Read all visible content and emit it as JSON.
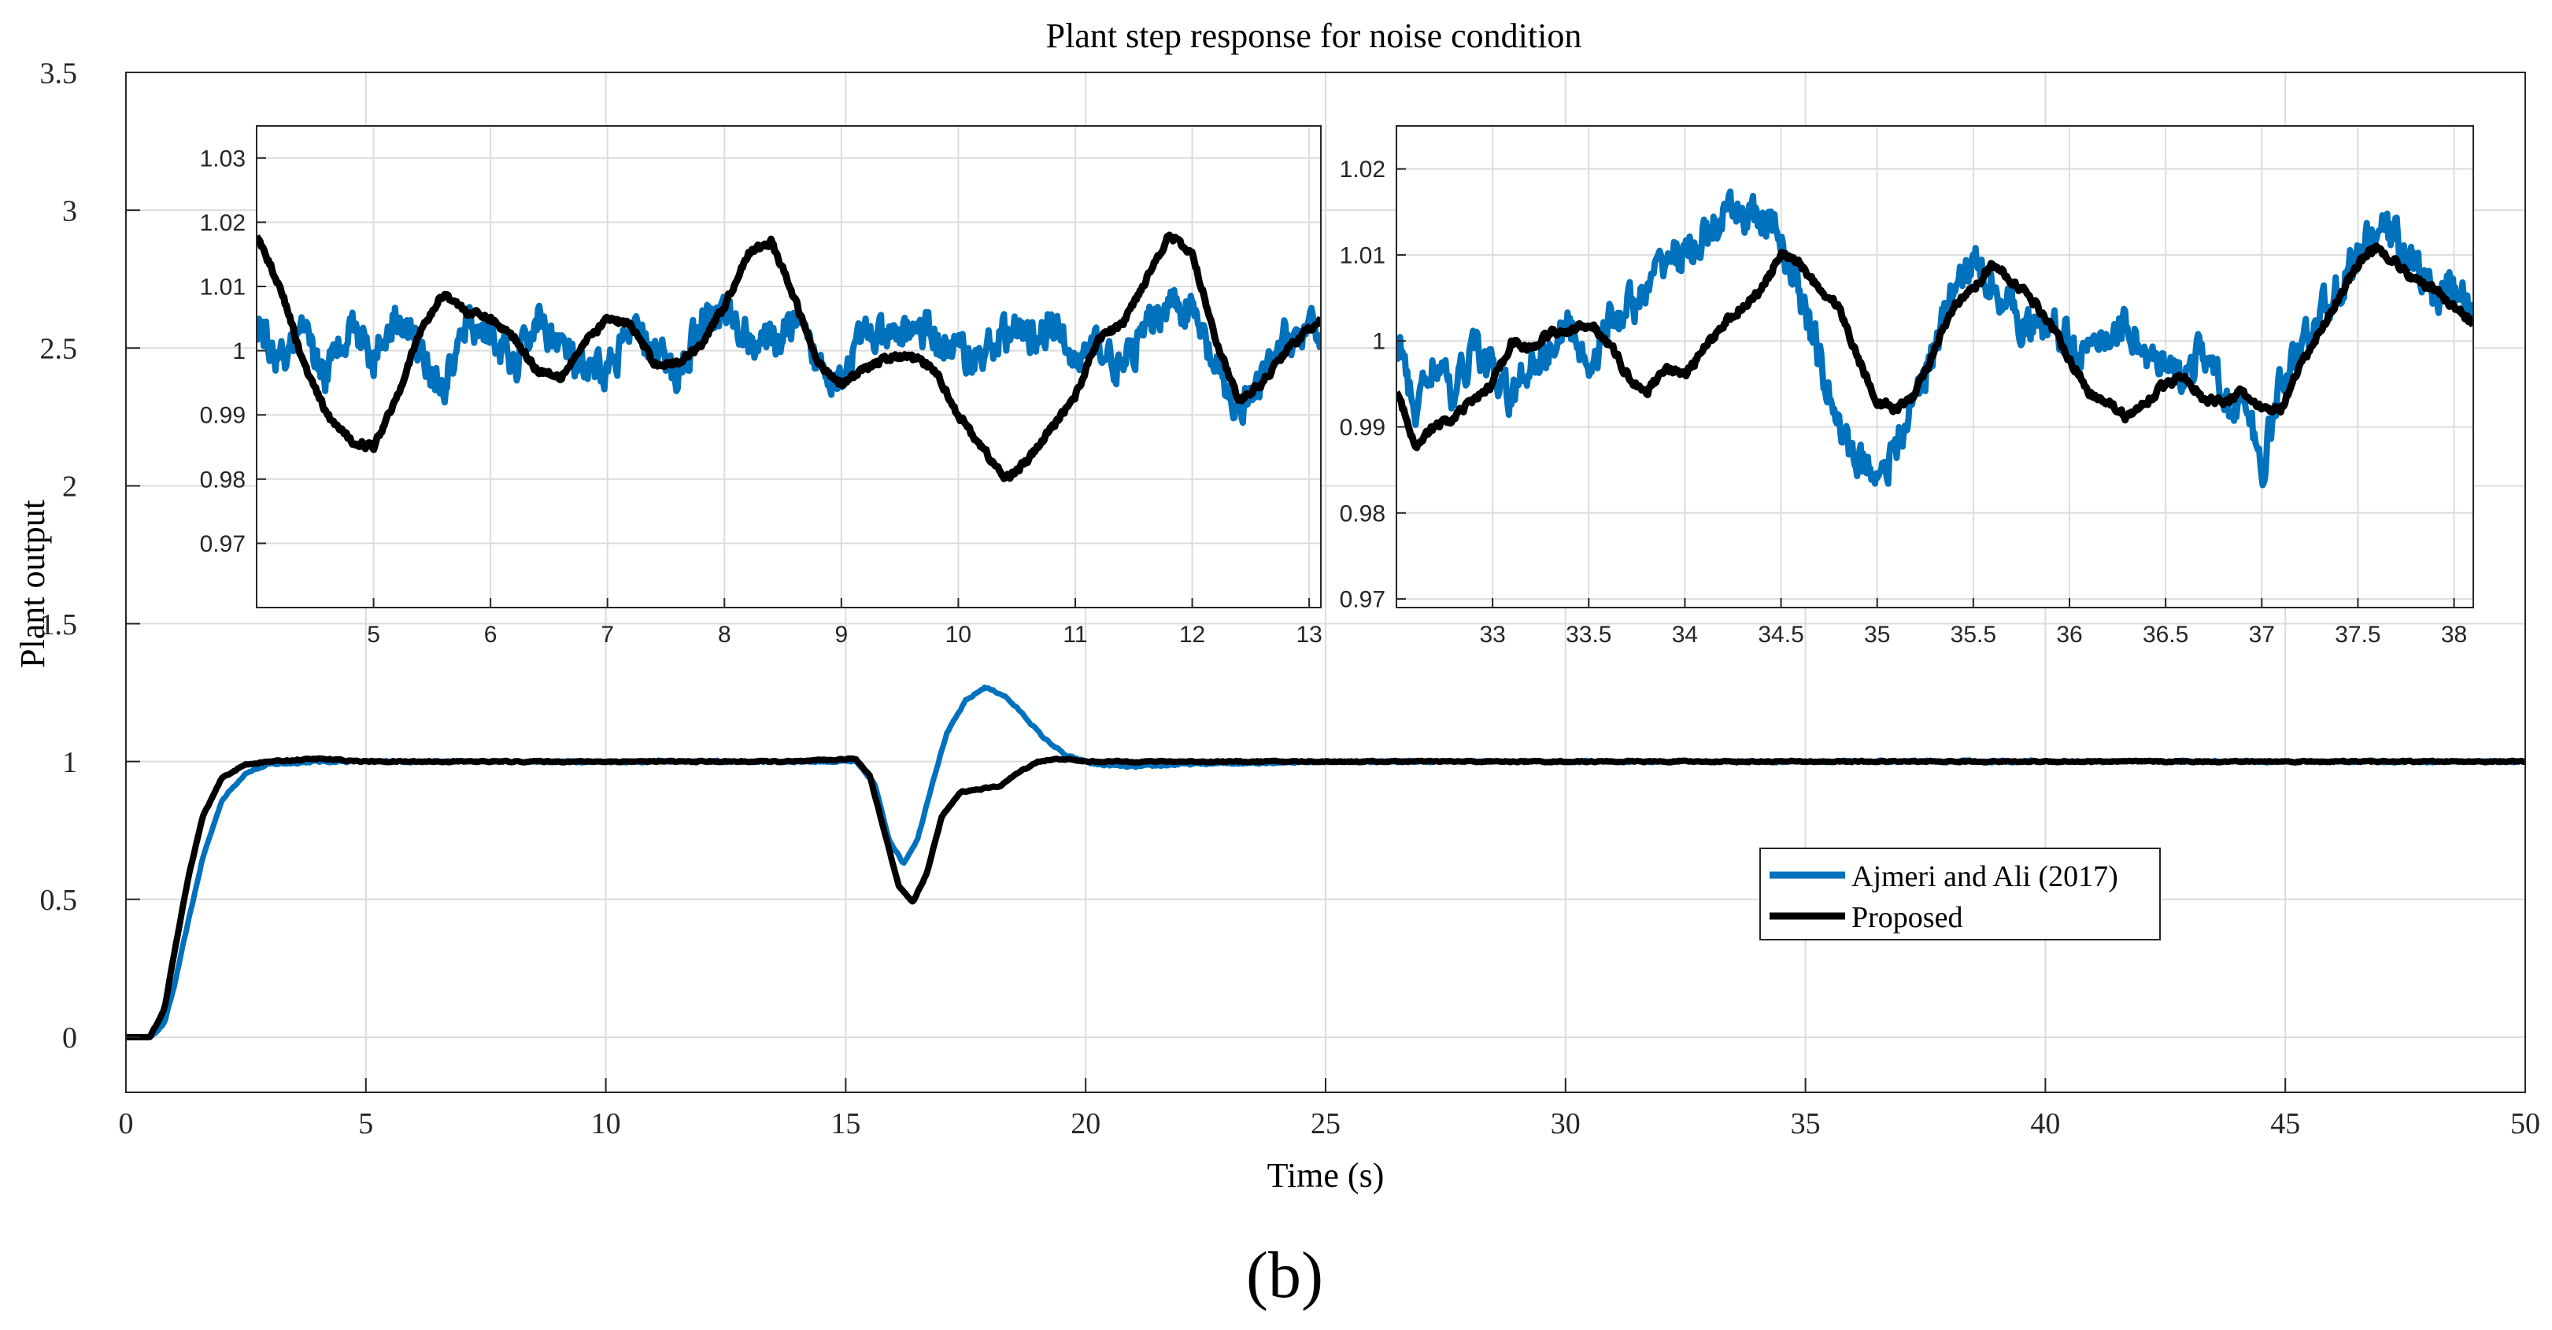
{
  "chart_data": [
    {
      "id": "main",
      "type": "line",
      "title": "Plant step response for noise condition",
      "xlabel": "Time (s)",
      "ylabel": "Plant output",
      "xlim": [
        0,
        50
      ],
      "ylim": [
        -0.2,
        3.5
      ],
      "xticks": [
        0,
        5,
        10,
        15,
        20,
        25,
        30,
        35,
        40,
        45,
        50
      ],
      "yticks": [
        0,
        0.5,
        1,
        1.5,
        2,
        2.5,
        3,
        3.5
      ],
      "xtick_labels": [
        "0",
        "5",
        "10",
        "15",
        "20",
        "25",
        "30",
        "35",
        "40",
        "45",
        "50"
      ],
      "ytick_labels": [
        "0",
        "0.5",
        "1",
        "1.5",
        "2",
        "2.5",
        "3",
        "3.5"
      ],
      "grid": true,
      "legend": {
        "position": "right-center",
        "entries": [
          "Ajmeri and Ali (2017)",
          "Proposed"
        ]
      },
      "series": [
        {
          "name": "Ajmeri and Ali (2017)",
          "color": "#0072bd",
          "x": [
            0,
            0.5,
            0.8,
            1.0,
            1.3,
            1.6,
            2.0,
            2.5,
            3.0,
            4.0,
            5.0,
            6.0,
            8.0,
            10.0,
            12.0,
            14.0,
            15.2,
            15.6,
            15.9,
            16.2,
            16.5,
            16.8,
            17.1,
            17.5,
            17.9,
            18.3,
            18.7,
            19.1,
            19.6,
            20.2,
            21.0,
            22.0,
            25.0,
            30.0,
            35.0,
            40.0,
            45.0,
            50.0
          ],
          "y": [
            0,
            0,
            0.05,
            0.18,
            0.42,
            0.65,
            0.86,
            0.96,
            0.99,
            1.0,
            1.0,
            1.0,
            1.0,
            1.0,
            1.0,
            1.0,
            1.0,
            0.92,
            0.72,
            0.63,
            0.72,
            0.92,
            1.1,
            1.22,
            1.27,
            1.24,
            1.17,
            1.09,
            1.02,
            0.99,
            0.98,
            0.99,
            1.0,
            1.0,
            1.0,
            1.0,
            1.0,
            1.0
          ]
        },
        {
          "name": "Proposed",
          "color": "#000000",
          "x": [
            0,
            0.5,
            0.8,
            1.0,
            1.3,
            1.6,
            2.0,
            2.5,
            3.0,
            4.0,
            5.0,
            6.0,
            8.0,
            10.0,
            12.0,
            14.0,
            15.2,
            15.5,
            15.8,
            16.1,
            16.4,
            16.7,
            17.0,
            17.4,
            17.8,
            18.2,
            18.6,
            19.0,
            19.5,
            20.0,
            21.0,
            25.0,
            30.0,
            35.0,
            40.0,
            45.0,
            50.0
          ],
          "y": [
            0,
            0,
            0.1,
            0.3,
            0.58,
            0.8,
            0.94,
            0.99,
            1.0,
            1.01,
            1.0,
            1.0,
            1.0,
            1.0,
            1.0,
            1.0,
            1.01,
            0.95,
            0.75,
            0.55,
            0.49,
            0.6,
            0.8,
            0.89,
            0.9,
            0.91,
            0.96,
            1.0,
            1.01,
            1.0,
            1.0,
            1.0,
            1.0,
            1.0,
            1.0,
            1.0,
            1.0
          ]
        }
      ]
    },
    {
      "id": "inset-left",
      "type": "line",
      "xlim": [
        4,
        13.1
      ],
      "ylim": [
        0.96,
        1.035
      ],
      "xticks": [
        5,
        6,
        7,
        8,
        9,
        10,
        11,
        12,
        13
      ],
      "yticks": [
        0.97,
        0.98,
        0.99,
        1,
        1.01,
        1.02,
        1.03
      ],
      "xtick_labels": [
        "5",
        "6",
        "7",
        "8",
        "9",
        "10",
        "11",
        "12",
        "13"
      ],
      "ytick_labels": [
        "0.97",
        "0.98",
        "0.99",
        "1",
        "1.01",
        "1.02",
        "1.03"
      ],
      "grid": true,
      "series": [
        {
          "name": "Ajmeri and Ali (2017)",
          "color": "#0072bd",
          "x": [
            4.0,
            4.2,
            4.4,
            4.6,
            4.8,
            5.0,
            5.2,
            5.4,
            5.6,
            5.8,
            6.0,
            6.2,
            6.4,
            6.6,
            6.8,
            7.0,
            7.2,
            7.4,
            7.6,
            7.8,
            8.0,
            8.2,
            8.4,
            8.6,
            8.8,
            9.0,
            9.2,
            9.4,
            9.6,
            9.8,
            10.0,
            10.2,
            10.4,
            10.6,
            10.8,
            11.0,
            11.2,
            11.4,
            11.6,
            11.8,
            12.0,
            12.2,
            12.4,
            12.6,
            12.8,
            13.1
          ],
          "y": [
            1.004,
            0.998,
            1.002,
            0.996,
            1.005,
            0.999,
            1.006,
            1.0,
            0.994,
            1.004,
            1.003,
            0.997,
            1.005,
            1.001,
            0.996,
            0.997,
            1.003,
            1.0,
            0.996,
            1.005,
            1.006,
            1.002,
            1.001,
            1.004,
            0.998,
            0.996,
            1.003,
            1.001,
            1.004,
            1.002,
            1.0,
            0.999,
            1.003,
            1.002,
            1.004,
            0.998,
            1.001,
            0.997,
            1.003,
            1.008,
            1.006,
            0.997,
            0.99,
            0.995,
            1.002,
            1.003
          ]
        },
        {
          "name": "Proposed",
          "color": "#000000",
          "x": [
            4.0,
            4.2,
            4.4,
            4.6,
            4.8,
            5.0,
            5.2,
            5.4,
            5.6,
            5.8,
            6.0,
            6.2,
            6.4,
            6.6,
            6.8,
            7.0,
            7.2,
            7.4,
            7.6,
            7.8,
            8.0,
            8.2,
            8.4,
            8.6,
            8.8,
            9.0,
            9.2,
            9.4,
            9.6,
            9.8,
            10.0,
            10.2,
            10.4,
            10.6,
            10.8,
            11.0,
            11.2,
            11.4,
            11.6,
            11.8,
            12.0,
            12.2,
            12.4,
            12.6,
            12.8,
            13.1
          ],
          "y": [
            1.018,
            1.01,
            0.998,
            0.99,
            0.986,
            0.985,
            0.993,
            1.003,
            1.009,
            1.006,
            1.005,
            1.002,
            0.997,
            0.996,
            1.001,
            1.005,
            1.004,
            0.998,
            0.998,
            1.001,
            1.007,
            1.015,
            1.017,
            1.008,
            0.998,
            0.995,
            0.997,
            0.999,
            0.999,
            0.997,
            0.99,
            0.985,
            0.98,
            0.983,
            0.988,
            0.993,
            1.002,
            1.004,
            1.011,
            1.018,
            1.015,
            1.002,
            0.992,
            0.995,
            1.0,
            1.005
          ]
        }
      ]
    },
    {
      "id": "inset-right",
      "type": "line",
      "xlim": [
        32.5,
        38.1
      ],
      "ylim": [
        0.969,
        1.025
      ],
      "xticks": [
        33,
        33.5,
        34,
        34.5,
        35,
        35.5,
        36,
        36.5,
        37,
        37.5,
        38
      ],
      "yticks": [
        0.97,
        0.98,
        0.99,
        1,
        1.01,
        1.02
      ],
      "xtick_labels": [
        "33",
        "33.5",
        "34",
        "34.5",
        "35",
        "35.5",
        "36",
        "36.5",
        "37",
        "37.5",
        "38"
      ],
      "ytick_labels": [
        "0.97",
        "0.98",
        "0.99",
        "1",
        "1.01",
        "1.02"
      ],
      "grid": true,
      "series": [
        {
          "name": "Ajmeri and Ali (2017)",
          "color": "#0072bd",
          "x": [
            32.5,
            32.6,
            32.7,
            32.8,
            32.9,
            33.0,
            33.1,
            33.2,
            33.3,
            33.4,
            33.5,
            33.6,
            33.7,
            33.8,
            33.9,
            34.0,
            34.1,
            34.2,
            34.3,
            34.4,
            34.5,
            34.6,
            34.7,
            34.8,
            34.9,
            35.0,
            35.1,
            35.2,
            35.3,
            35.4,
            35.5,
            35.6,
            35.7,
            35.8,
            35.9,
            36.0,
            36.1,
            36.2,
            36.3,
            36.4,
            36.5,
            36.6,
            36.7,
            36.8,
            36.9,
            37.0,
            37.1,
            37.2,
            37.3,
            37.4,
            37.5,
            37.6,
            37.7,
            37.8,
            37.9,
            38.0,
            38.1
          ],
          "y": [
            1.0,
            0.992,
            0.998,
            0.993,
            1.0,
            0.996,
            0.993,
            0.998,
            0.999,
            1.002,
            0.997,
            1.002,
            1.004,
            1.005,
            1.01,
            1.01,
            1.012,
            1.014,
            1.015,
            1.014,
            1.012,
            1.005,
            0.998,
            0.99,
            0.986,
            0.985,
            0.987,
            0.994,
            0.999,
            1.006,
            1.009,
            1.007,
            1.004,
            1.001,
            1.002,
            1.0,
            0.998,
            1.001,
            1.002,
            0.998,
            0.996,
            0.996,
            0.999,
            0.993,
            0.993,
            0.985,
            0.995,
            0.999,
            1.003,
            1.006,
            1.01,
            1.013,
            1.012,
            1.009,
            1.005,
            1.006,
            1.004
          ]
        },
        {
          "name": "Proposed",
          "color": "#000000",
          "x": [
            32.5,
            32.6,
            32.7,
            32.8,
            32.9,
            33.0,
            33.1,
            33.2,
            33.3,
            33.4,
            33.5,
            33.6,
            33.7,
            33.8,
            33.9,
            34.0,
            34.1,
            34.2,
            34.3,
            34.4,
            34.5,
            34.6,
            34.7,
            34.8,
            34.9,
            35.0,
            35.1,
            35.2,
            35.3,
            35.4,
            35.5,
            35.6,
            35.7,
            35.8,
            35.9,
            36.0,
            36.1,
            36.2,
            36.3,
            36.4,
            36.5,
            36.6,
            36.7,
            36.8,
            36.9,
            37.0,
            37.1,
            37.2,
            37.3,
            37.4,
            37.5,
            37.6,
            37.7,
            37.8,
            37.9,
            38.0,
            38.1
          ],
          "y": [
            0.994,
            0.988,
            0.99,
            0.991,
            0.993,
            0.995,
            1.0,
            0.999,
            1.001,
            1.001,
            1.002,
            1.0,
            0.996,
            0.994,
            0.997,
            0.996,
            0.999,
            1.002,
            1.004,
            1.006,
            1.01,
            1.009,
            1.006,
            1.004,
            0.998,
            0.993,
            0.992,
            0.994,
            0.999,
            1.004,
            1.006,
            1.009,
            1.007,
            1.005,
            1.002,
            0.998,
            0.994,
            0.993,
            0.991,
            0.993,
            0.995,
            0.996,
            0.993,
            0.993,
            0.994,
            0.992,
            0.992,
            0.997,
            1.001,
            1.005,
            1.009,
            1.011,
            1.009,
            1.007,
            1.006,
            1.004,
            1.002
          ]
        }
      ]
    }
  ],
  "caption": "(b)"
}
